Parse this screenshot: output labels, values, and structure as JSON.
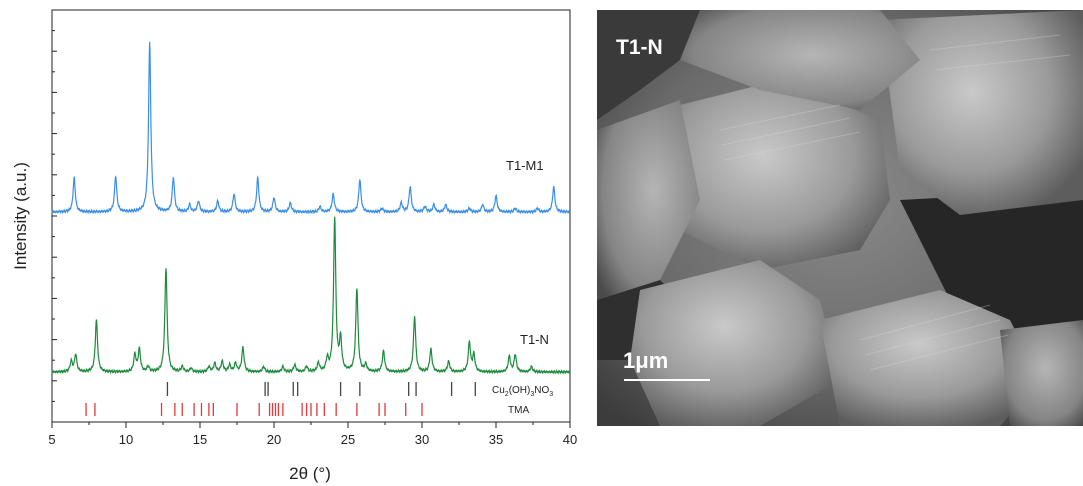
{
  "chart_data": {
    "type": "line",
    "xlabel": "2θ (°)",
    "ylabel": "Intensity (a.u.)",
    "xlim": [
      5,
      40
    ],
    "x_ticks": [
      "5",
      "10",
      "15",
      "20",
      "25",
      "30",
      "35",
      "40"
    ],
    "series": [
      {
        "name": "T1-M1",
        "color": "#3a8ee6",
        "peaks": [
          [
            6.5,
            0.19
          ],
          [
            9.3,
            0.2
          ],
          [
            11.6,
            0.94
          ],
          [
            13.2,
            0.19
          ],
          [
            14.3,
            0.04
          ],
          [
            14.9,
            0.06
          ],
          [
            16.2,
            0.06
          ],
          [
            17.3,
            0.1
          ],
          [
            18.9,
            0.19
          ],
          [
            20.0,
            0.08
          ],
          [
            21.1,
            0.05
          ],
          [
            23.1,
            0.03
          ],
          [
            24.0,
            0.1
          ],
          [
            25.8,
            0.18
          ],
          [
            27.3,
            0.02
          ],
          [
            28.6,
            0.05
          ],
          [
            29.2,
            0.14
          ],
          [
            30.2,
            0.03
          ],
          [
            30.8,
            0.04
          ],
          [
            31.6,
            0.04
          ],
          [
            33.2,
            0.02
          ],
          [
            34.1,
            0.04
          ],
          [
            35.0,
            0.09
          ],
          [
            36.3,
            0.02
          ],
          [
            37.8,
            0.02
          ],
          [
            38.9,
            0.14
          ]
        ]
      },
      {
        "name": "T1-N",
        "color": "#1e8a3c",
        "peaks": [
          [
            6.3,
            0.06
          ],
          [
            6.6,
            0.1
          ],
          [
            8.0,
            0.3
          ],
          [
            10.6,
            0.1
          ],
          [
            10.9,
            0.13
          ],
          [
            11.5,
            0.03
          ],
          [
            12.7,
            0.6
          ],
          [
            13.8,
            0.03
          ],
          [
            14.4,
            0.02
          ],
          [
            15.6,
            0.03
          ],
          [
            16.0,
            0.05
          ],
          [
            16.5,
            0.06
          ],
          [
            17.0,
            0.04
          ],
          [
            17.4,
            0.05
          ],
          [
            17.9,
            0.14
          ],
          [
            19.3,
            0.03
          ],
          [
            20.6,
            0.03
          ],
          [
            21.4,
            0.04
          ],
          [
            22.2,
            0.03
          ],
          [
            23.0,
            0.05
          ],
          [
            23.6,
            0.07
          ],
          [
            24.1,
            0.88
          ],
          [
            24.5,
            0.18
          ],
          [
            25.6,
            0.48
          ],
          [
            26.2,
            0.04
          ],
          [
            27.4,
            0.12
          ],
          [
            29.5,
            0.32
          ],
          [
            30.6,
            0.13
          ],
          [
            31.8,
            0.06
          ],
          [
            33.2,
            0.17
          ],
          [
            33.5,
            0.1
          ],
          [
            35.9,
            0.09
          ],
          [
            36.3,
            0.1
          ],
          [
            37.4,
            0.03
          ]
        ]
      }
    ],
    "reference_patterns": [
      {
        "name": "Cu2(OH)3NO3",
        "color": "#444444",
        "positions": [
          12.8,
          19.4,
          19.6,
          21.3,
          21.6,
          24.5,
          25.8,
          29.1,
          29.6,
          32.0,
          33.6
        ]
      },
      {
        "name": "TMA",
        "color": "#e03a3a",
        "positions": [
          7.3,
          7.9,
          12.4,
          13.3,
          13.8,
          14.6,
          15.1,
          15.6,
          15.9,
          17.5,
          19.0,
          19.7,
          19.9,
          20.1,
          20.3,
          20.6,
          21.9,
          22.2,
          22.5,
          22.9,
          23.4,
          24.2,
          25.6,
          27.1,
          27.5,
          28.9,
          30.0
        ]
      }
    ],
    "labels": {
      "series_1": "T1-M1",
      "series_2": "T1-N",
      "ref_1_base": "Cu",
      "ref_1_sub1": "2",
      "ref_1_mid": "(OH)",
      "ref_1_sub2": "3",
      "ref_1_end": "NO",
      "ref_1_sub3": "3",
      "ref_2": "TMA"
    }
  },
  "image_panel": {
    "label": "T1-N",
    "scale_bar_label": "1μm"
  }
}
